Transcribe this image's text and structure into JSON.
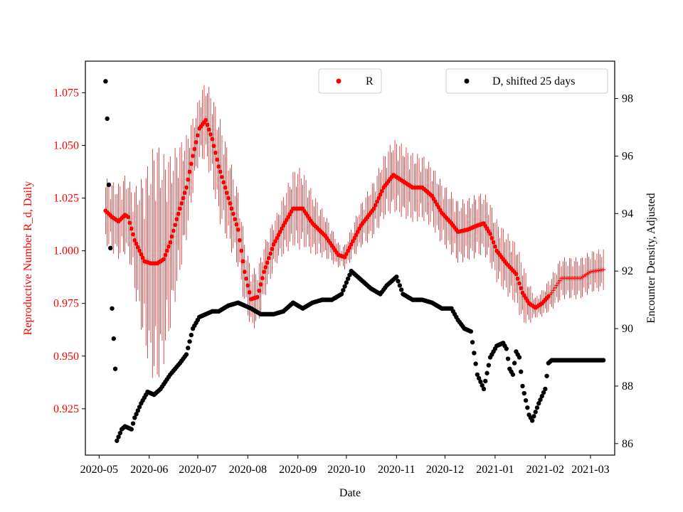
{
  "chart_data": {
    "type": "scatter",
    "xlabel": "Date",
    "ylabel_left": "Reproductive Number R_d, Daily",
    "ylabel_right": "Encounter Density, Adjusted",
    "ylim_left": [
      0.903,
      1.09
    ],
    "ylim_right": [
      85.6,
      99.3
    ],
    "x_domain_days": [
      -8.5,
      319
    ],
    "x_ticks": [
      {
        "label": "2020-05",
        "day": 0
      },
      {
        "label": "2020-06",
        "day": 31
      },
      {
        "label": "2020-07",
        "day": 61
      },
      {
        "label": "2020-08",
        "day": 92
      },
      {
        "label": "2020-09",
        "day": 123
      },
      {
        "label": "2020-10",
        "day": 153
      },
      {
        "label": "2020-11",
        "day": 184
      },
      {
        "label": "2020-12",
        "day": 214
      },
      {
        "label": "2021-01",
        "day": 245
      },
      {
        "label": "2021-02",
        "day": 276
      },
      {
        "label": "2021-03",
        "day": 304
      }
    ],
    "y_ticks_left": [
      "0.925",
      "0.950",
      "0.975",
      "1.000",
      "1.025",
      "1.050",
      "1.075"
    ],
    "y_ticks_right": [
      "86",
      "88",
      "90",
      "92",
      "94",
      "96",
      "98"
    ],
    "legend": {
      "r_label": "R",
      "d_label": "D, shifted 25 days"
    },
    "colors": {
      "r": "#ff0000",
      "r_err": "#cc0000",
      "d": "#000000"
    },
    "series_r": {
      "name": "R",
      "x_start_day": 4,
      "x_end_day": 312,
      "marker_change_day": 279,
      "keypoints": [
        [
          4,
          1.019
        ],
        [
          8,
          1.016
        ],
        [
          12,
          1.014
        ],
        [
          16,
          1.017
        ],
        [
          18,
          1.016
        ],
        [
          22,
          1.005
        ],
        [
          28,
          0.995
        ],
        [
          32,
          0.994
        ],
        [
          36,
          0.994
        ],
        [
          40,
          0.996
        ],
        [
          44,
          1.004
        ],
        [
          48,
          1.015
        ],
        [
          54,
          1.03
        ],
        [
          58,
          1.045
        ],
        [
          62,
          1.058
        ],
        [
          66,
          1.062
        ],
        [
          70,
          1.053
        ],
        [
          74,
          1.04
        ],
        [
          80,
          1.025
        ],
        [
          86,
          1.01
        ],
        [
          90,
          0.99
        ],
        [
          94,
          0.977
        ],
        [
          98,
          0.978
        ],
        [
          102,
          0.99
        ],
        [
          108,
          1.003
        ],
        [
          114,
          1.012
        ],
        [
          120,
          1.02
        ],
        [
          126,
          1.02
        ],
        [
          132,
          1.013
        ],
        [
          140,
          1.007
        ],
        [
          148,
          0.998
        ],
        [
          152,
          0.997
        ],
        [
          156,
          1.003
        ],
        [
          162,
          1.012
        ],
        [
          170,
          1.02
        ],
        [
          176,
          1.03
        ],
        [
          182,
          1.036
        ],
        [
          188,
          1.033
        ],
        [
          194,
          1.03
        ],
        [
          200,
          1.03
        ],
        [
          206,
          1.026
        ],
        [
          212,
          1.018
        ],
        [
          218,
          1.013
        ],
        [
          222,
          1.009
        ],
        [
          228,
          1.01
        ],
        [
          234,
          1.012
        ],
        [
          238,
          1.013
        ],
        [
          242,
          1.008
        ],
        [
          246,
          1.0
        ],
        [
          252,
          0.994
        ],
        [
          258,
          0.989
        ],
        [
          262,
          0.98
        ],
        [
          266,
          0.975
        ],
        [
          270,
          0.973
        ],
        [
          274,
          0.975
        ],
        [
          280,
          0.98
        ],
        [
          286,
          0.987
        ],
        [
          292,
          0.987
        ],
        [
          298,
          0.987
        ],
        [
          304,
          0.99
        ],
        [
          312,
          0.991
        ]
      ],
      "error_half_width_keypoints": [
        [
          4,
          0.016
        ],
        [
          20,
          0.02
        ],
        [
          35,
          0.06
        ],
        [
          45,
          0.04
        ],
        [
          60,
          0.015
        ],
        [
          75,
          0.025
        ],
        [
          92,
          0.015
        ],
        [
          110,
          0.012
        ],
        [
          123,
          0.02
        ],
        [
          150,
          0.005
        ],
        [
          165,
          0.012
        ],
        [
          185,
          0.018
        ],
        [
          205,
          0.015
        ],
        [
          225,
          0.015
        ],
        [
          245,
          0.015
        ],
        [
          262,
          0.015
        ],
        [
          270,
          0.005
        ],
        [
          285,
          0.01
        ],
        [
          312,
          0.01
        ]
      ]
    },
    "series_d": {
      "name": "D, shifted 25 days",
      "x_start_day": 4,
      "x_end_day": 312,
      "keypoints": [
        [
          4,
          98.6
        ],
        [
          5,
          97.3
        ],
        [
          6,
          95.0
        ],
        [
          7,
          92.8
        ],
        [
          8,
          90.7
        ],
        [
          10,
          88.6
        ],
        [
          11,
          86.1
        ],
        [
          14,
          86.5
        ],
        [
          16,
          86.6
        ],
        [
          20,
          86.5
        ],
        [
          22,
          86.9
        ],
        [
          26,
          87.4
        ],
        [
          30,
          87.8
        ],
        [
          34,
          87.7
        ],
        [
          38,
          87.9
        ],
        [
          44,
          88.4
        ],
        [
          50,
          88.8
        ],
        [
          54,
          89.1
        ],
        [
          58,
          90.0
        ],
        [
          62,
          90.4
        ],
        [
          66,
          90.5
        ],
        [
          70,
          90.6
        ],
        [
          74,
          90.6
        ],
        [
          80,
          90.8
        ],
        [
          86,
          90.9
        ],
        [
          90,
          90.8
        ],
        [
          94,
          90.7
        ],
        [
          100,
          90.5
        ],
        [
          108,
          90.5
        ],
        [
          114,
          90.6
        ],
        [
          120,
          90.9
        ],
        [
          126,
          90.7
        ],
        [
          132,
          90.9
        ],
        [
          138,
          91.0
        ],
        [
          144,
          91.0
        ],
        [
          150,
          91.2
        ],
        [
          156,
          92.0
        ],
        [
          162,
          91.7
        ],
        [
          168,
          91.4
        ],
        [
          174,
          91.2
        ],
        [
          178,
          91.5
        ],
        [
          184,
          91.8
        ],
        [
          188,
          91.2
        ],
        [
          194,
          91.0
        ],
        [
          200,
          91.0
        ],
        [
          206,
          90.9
        ],
        [
          212,
          90.7
        ],
        [
          218,
          90.7
        ],
        [
          222,
          90.3
        ],
        [
          226,
          90.0
        ],
        [
          230,
          89.9
        ],
        [
          234,
          88.4
        ],
        [
          238,
          87.9
        ],
        [
          242,
          89.0
        ],
        [
          246,
          89.4
        ],
        [
          250,
          89.5
        ],
        [
          252,
          89.3
        ],
        [
          254,
          88.6
        ],
        [
          256,
          88.4
        ],
        [
          258,
          89.2
        ],
        [
          260,
          89.0
        ],
        [
          262,
          88.0
        ],
        [
          266,
          87.0
        ],
        [
          268,
          86.8
        ],
        [
          272,
          87.4
        ],
        [
          276,
          87.9
        ],
        [
          278,
          88.8
        ],
        [
          280,
          88.9
        ],
        [
          312,
          88.9
        ]
      ]
    }
  }
}
